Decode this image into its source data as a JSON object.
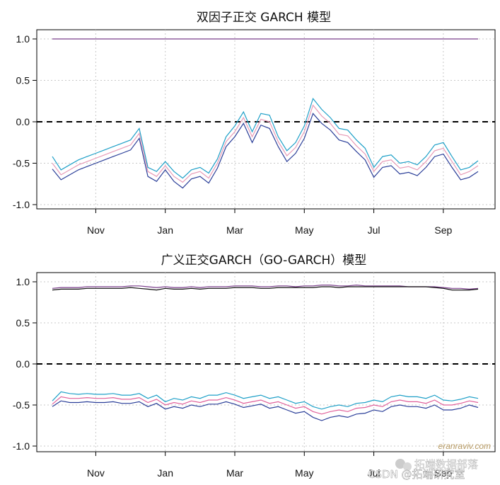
{
  "chart_data": [
    {
      "type": "line",
      "title": "双因子正交 GARCH 模型",
      "xlabel": "",
      "ylabel": "",
      "ylim": [
        -1.0,
        1.0
      ],
      "yticks": [
        "1.0",
        "0.5",
        "0.0",
        "-0.5",
        "-1.0"
      ],
      "ytick_values": [
        1.0,
        0.5,
        0.0,
        -0.5,
        -1.0
      ],
      "x_ticks": [
        "Nov",
        "Jan",
        "Mar",
        "May",
        "Jul",
        "Sep"
      ],
      "x_tick_index": [
        5,
        13,
        21,
        29,
        37,
        45
      ],
      "x_count": 50,
      "grid": true,
      "reference_line": 0.0,
      "series": [
        {
          "color": "#7b3f8c",
          "values": [
            1.0,
            1.0,
            1.0,
            1.0,
            1.0,
            1.0,
            1.0,
            1.0,
            1.0,
            1.0,
            1.0,
            1.0,
            1.0,
            1.0,
            1.0,
            1.0,
            1.0,
            1.0,
            1.0,
            1.0,
            1.0,
            1.0,
            1.0,
            1.0,
            1.0,
            1.0,
            1.0,
            1.0,
            1.0,
            1.0,
            1.0,
            1.0,
            1.0,
            1.0,
            1.0,
            1.0,
            1.0,
            1.0,
            1.0,
            1.0,
            1.0,
            1.0,
            1.0,
            1.0,
            1.0,
            1.0,
            1.0,
            1.0,
            1.0,
            1.0
          ]
        },
        {
          "color": "#1fa0c8",
          "values": [
            -0.42,
            -0.58,
            -0.52,
            -0.46,
            -0.42,
            -0.38,
            -0.34,
            -0.3,
            -0.26,
            -0.22,
            -0.08,
            -0.55,
            -0.6,
            -0.48,
            -0.6,
            -0.68,
            -0.58,
            -0.55,
            -0.62,
            -0.45,
            -0.18,
            -0.05,
            0.12,
            -0.12,
            0.1,
            0.08,
            -0.18,
            -0.35,
            -0.25,
            -0.05,
            0.28,
            0.15,
            0.05,
            -0.08,
            -0.1,
            -0.22,
            -0.32,
            -0.55,
            -0.42,
            -0.4,
            -0.5,
            -0.48,
            -0.52,
            -0.42,
            -0.28,
            -0.25,
            -0.42,
            -0.58,
            -0.55,
            -0.47
          ]
        },
        {
          "color": "#e79bb7",
          "values": [
            -0.5,
            -0.64,
            -0.58,
            -0.52,
            -0.48,
            -0.44,
            -0.4,
            -0.36,
            -0.32,
            -0.28,
            -0.14,
            -0.6,
            -0.66,
            -0.53,
            -0.66,
            -0.73,
            -0.63,
            -0.6,
            -0.68,
            -0.5,
            -0.24,
            -0.12,
            0.05,
            -0.18,
            0.03,
            0.0,
            -0.24,
            -0.41,
            -0.31,
            -0.12,
            0.2,
            0.07,
            -0.02,
            -0.15,
            -0.17,
            -0.29,
            -0.39,
            -0.6,
            -0.48,
            -0.46,
            -0.56,
            -0.54,
            -0.58,
            -0.48,
            -0.35,
            -0.32,
            -0.48,
            -0.64,
            -0.6,
            -0.53
          ]
        },
        {
          "color": "#2b3f99",
          "values": [
            -0.57,
            -0.7,
            -0.64,
            -0.58,
            -0.54,
            -0.5,
            -0.46,
            -0.42,
            -0.38,
            -0.34,
            -0.2,
            -0.66,
            -0.72,
            -0.58,
            -0.72,
            -0.8,
            -0.69,
            -0.66,
            -0.74,
            -0.56,
            -0.3,
            -0.18,
            -0.02,
            -0.25,
            -0.04,
            -0.08,
            -0.3,
            -0.48,
            -0.38,
            -0.2,
            0.1,
            -0.02,
            -0.1,
            -0.22,
            -0.25,
            -0.36,
            -0.46,
            -0.67,
            -0.55,
            -0.53,
            -0.63,
            -0.61,
            -0.65,
            -0.55,
            -0.42,
            -0.39,
            -0.55,
            -0.7,
            -0.67,
            -0.6
          ]
        }
      ]
    },
    {
      "type": "line",
      "title": "广义正交GARCH（GO-GARCH）模型",
      "xlabel": "",
      "ylabel": "",
      "ylim": [
        -1.0,
        1.0
      ],
      "yticks": [
        "1.0",
        "0.5",
        "0.0",
        "-0.5",
        "-1.0"
      ],
      "ytick_values": [
        1.0,
        0.5,
        0.0,
        -0.5,
        -1.0
      ],
      "x_ticks": [
        "Nov",
        "Jan",
        "Mar",
        "May",
        "Jul",
        "Sep"
      ],
      "x_tick_index": [
        5,
        13,
        21,
        29,
        37,
        45
      ],
      "x_count": 50,
      "grid": true,
      "reference_line": 0.0,
      "series": [
        {
          "color": "#7b3f8c",
          "values": [
            0.92,
            0.93,
            0.93,
            0.93,
            0.94,
            0.94,
            0.94,
            0.94,
            0.94,
            0.95,
            0.95,
            0.94,
            0.93,
            0.94,
            0.93,
            0.93,
            0.94,
            0.93,
            0.94,
            0.94,
            0.94,
            0.95,
            0.95,
            0.95,
            0.94,
            0.94,
            0.95,
            0.95,
            0.94,
            0.95,
            0.95,
            0.96,
            0.96,
            0.95,
            0.95,
            0.96,
            0.95,
            0.95,
            0.95,
            0.95,
            0.95,
            0.94,
            0.94,
            0.94,
            0.94,
            0.93,
            0.92,
            0.92,
            0.91,
            0.92
          ]
        },
        {
          "color": "#111111",
          "values": [
            0.9,
            0.91,
            0.91,
            0.91,
            0.92,
            0.92,
            0.92,
            0.92,
            0.92,
            0.93,
            0.92,
            0.91,
            0.9,
            0.92,
            0.91,
            0.91,
            0.92,
            0.91,
            0.92,
            0.92,
            0.92,
            0.93,
            0.93,
            0.93,
            0.92,
            0.92,
            0.93,
            0.93,
            0.93,
            0.93,
            0.93,
            0.94,
            0.94,
            0.93,
            0.94,
            0.94,
            0.94,
            0.94,
            0.94,
            0.94,
            0.94,
            0.94,
            0.94,
            0.94,
            0.93,
            0.92,
            0.9,
            0.9,
            0.9,
            0.91
          ]
        },
        {
          "color": "#1fa0c8",
          "values": [
            -0.45,
            -0.34,
            -0.36,
            -0.37,
            -0.36,
            -0.37,
            -0.37,
            -0.36,
            -0.38,
            -0.38,
            -0.36,
            -0.42,
            -0.38,
            -0.46,
            -0.42,
            -0.44,
            -0.4,
            -0.42,
            -0.38,
            -0.38,
            -0.35,
            -0.38,
            -0.42,
            -0.4,
            -0.38,
            -0.42,
            -0.4,
            -0.44,
            -0.48,
            -0.46,
            -0.52,
            -0.55,
            -0.52,
            -0.5,
            -0.52,
            -0.48,
            -0.47,
            -0.44,
            -0.46,
            -0.4,
            -0.38,
            -0.4,
            -0.4,
            -0.42,
            -0.38,
            -0.44,
            -0.45,
            -0.43,
            -0.4,
            -0.42
          ]
        },
        {
          "color": "#e0609a",
          "values": [
            -0.49,
            -0.4,
            -0.42,
            -0.42,
            -0.41,
            -0.42,
            -0.42,
            -0.41,
            -0.43,
            -0.43,
            -0.41,
            -0.47,
            -0.43,
            -0.5,
            -0.47,
            -0.49,
            -0.45,
            -0.47,
            -0.44,
            -0.44,
            -0.41,
            -0.44,
            -0.48,
            -0.46,
            -0.44,
            -0.48,
            -0.46,
            -0.5,
            -0.54,
            -0.52,
            -0.58,
            -0.61,
            -0.58,
            -0.56,
            -0.58,
            -0.54,
            -0.53,
            -0.5,
            -0.52,
            -0.46,
            -0.44,
            -0.46,
            -0.46,
            -0.48,
            -0.44,
            -0.5,
            -0.5,
            -0.48,
            -0.45,
            -0.47
          ]
        },
        {
          "color": "#2b3f99",
          "values": [
            -0.52,
            -0.45,
            -0.47,
            -0.47,
            -0.46,
            -0.47,
            -0.47,
            -0.46,
            -0.48,
            -0.48,
            -0.46,
            -0.52,
            -0.48,
            -0.55,
            -0.52,
            -0.54,
            -0.5,
            -0.52,
            -0.49,
            -0.49,
            -0.46,
            -0.49,
            -0.53,
            -0.51,
            -0.49,
            -0.54,
            -0.52,
            -0.56,
            -0.6,
            -0.58,
            -0.65,
            -0.69,
            -0.65,
            -0.63,
            -0.65,
            -0.61,
            -0.6,
            -0.56,
            -0.58,
            -0.52,
            -0.5,
            -0.52,
            -0.52,
            -0.54,
            -0.5,
            -0.56,
            -0.56,
            -0.54,
            -0.5,
            -0.53
          ]
        }
      ]
    }
  ],
  "watermark": {
    "site": "eranraviv.com",
    "csdn": "CSDN @拓端研究室",
    "wechat": "拓端数据部落"
  }
}
